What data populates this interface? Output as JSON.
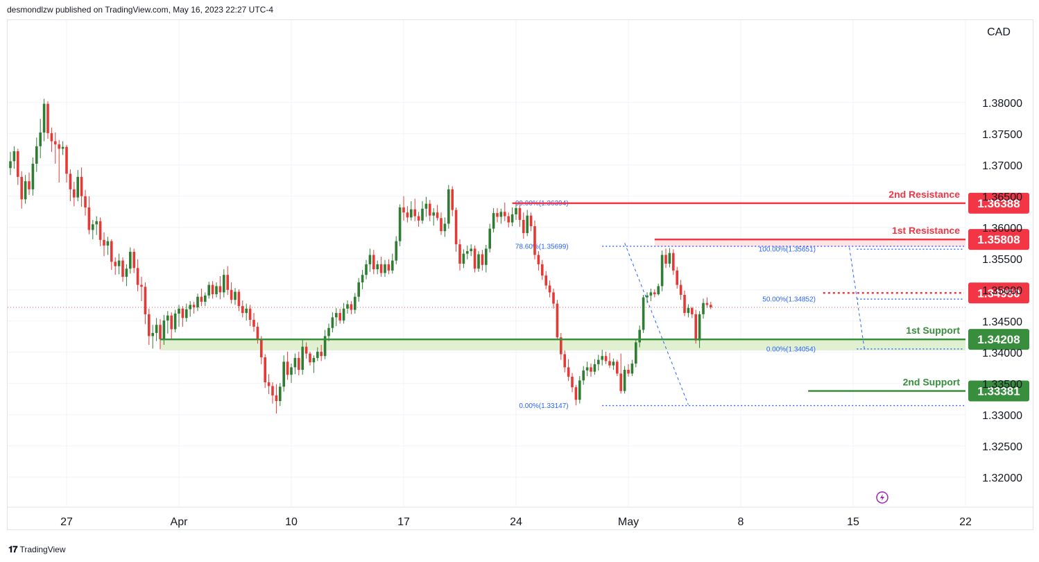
{
  "header": {
    "published": "desmondlzw published on TradingView.com, May 16, 2023 22:27 UTC-4"
  },
  "footer": {
    "brand": "TradingView",
    "logo_icon": "tradingview-logo-icon"
  },
  "axis": {
    "currency": "CAD"
  },
  "colors": {
    "up": "#2e7d32",
    "down": "#e53935",
    "resistance": "#f23645",
    "support": "#388e3c",
    "fib": "#2962ff",
    "grid": "#f0f3fa",
    "zone_green": "#dcedc8",
    "zone_red": "#fde0e0"
  },
  "chart_data": {
    "type": "candlestick",
    "symbol_currency": "CAD",
    "ylim": [
      1.3152,
      1.3932
    ],
    "y_ticks": [
      "1.38000",
      "1.37500",
      "1.37000",
      "1.36500",
      "1.36000",
      "1.35500",
      "1.35000",
      "1.34500",
      "1.34000",
      "1.33500",
      "1.33000",
      "1.32500",
      "1.32000"
    ],
    "x_ticks": [
      {
        "label": "27",
        "bar": 15
      },
      {
        "label": "Apr",
        "bar": 45
      },
      {
        "label": "10",
        "bar": 75
      },
      {
        "label": "17",
        "bar": 105
      },
      {
        "label": "24",
        "bar": 135
      },
      {
        "label": "May",
        "bar": 165
      },
      {
        "label": "8",
        "bar": 195
      },
      {
        "label": "15",
        "bar": 225
      },
      {
        "label": "22",
        "bar": 255
      }
    ],
    "candles": [
      [
        1.3695,
        1.3721,
        1.3684,
        1.3706
      ],
      [
        1.3706,
        1.373,
        1.3694,
        1.3722
      ],
      [
        1.3722,
        1.3726,
        1.3668,
        1.3681
      ],
      [
        1.3681,
        1.369,
        1.363,
        1.3645
      ],
      [
        1.3645,
        1.3684,
        1.3638,
        1.3674
      ],
      [
        1.3674,
        1.3688,
        1.3652,
        1.3661
      ],
      [
        1.3661,
        1.3712,
        1.3651,
        1.3702
      ],
      [
        1.3702,
        1.3744,
        1.3689,
        1.373
      ],
      [
        1.373,
        1.3774,
        1.3711,
        1.3752
      ],
      [
        1.3752,
        1.3806,
        1.3738,
        1.3798
      ],
      [
        1.3798,
        1.3802,
        1.3742,
        1.3751
      ],
      [
        1.3751,
        1.376,
        1.3721,
        1.3738
      ],
      [
        1.3738,
        1.3752,
        1.3702,
        1.3733
      ],
      [
        1.3733,
        1.374,
        1.3672,
        1.3726
      ],
      [
        1.3726,
        1.3738,
        1.3716,
        1.3729
      ],
      [
        1.3729,
        1.3732,
        1.3672,
        1.3686
      ],
      [
        1.3686,
        1.3693,
        1.3642,
        1.3661
      ],
      [
        1.3661,
        1.3673,
        1.3634,
        1.3648
      ],
      [
        1.3648,
        1.3692,
        1.3642,
        1.3681
      ],
      [
        1.3681,
        1.3696,
        1.3633,
        1.365
      ],
      [
        1.365,
        1.366,
        1.3619,
        1.3632
      ],
      [
        1.3632,
        1.365,
        1.3589,
        1.3596
      ],
      [
        1.3596,
        1.3612,
        1.3581,
        1.3605
      ],
      [
        1.3605,
        1.3618,
        1.3588,
        1.361
      ],
      [
        1.361,
        1.3616,
        1.357,
        1.358
      ],
      [
        1.358,
        1.3592,
        1.3554,
        1.3571
      ],
      [
        1.3571,
        1.3585,
        1.3556,
        1.3578
      ],
      [
        1.3578,
        1.3581,
        1.3532,
        1.3545
      ],
      [
        1.3545,
        1.3552,
        1.3524,
        1.3538
      ],
      [
        1.3538,
        1.3558,
        1.3525,
        1.3547
      ],
      [
        1.3547,
        1.3552,
        1.3513,
        1.3521
      ],
      [
        1.3521,
        1.3541,
        1.3506,
        1.3534
      ],
      [
        1.3534,
        1.3568,
        1.3526,
        1.3561
      ],
      [
        1.3561,
        1.3566,
        1.3527,
        1.3535
      ],
      [
        1.3535,
        1.3549,
        1.3498,
        1.3508
      ],
      [
        1.3508,
        1.3521,
        1.3482,
        1.3505
      ],
      [
        1.3505,
        1.3512,
        1.3445,
        1.3461
      ],
      [
        1.3461,
        1.347,
        1.3412,
        1.3426
      ],
      [
        1.3426,
        1.3444,
        1.3406,
        1.3431
      ],
      [
        1.3431,
        1.3455,
        1.3418,
        1.3444
      ],
      [
        1.3444,
        1.3453,
        1.3405,
        1.3421
      ],
      [
        1.3421,
        1.346,
        1.3412,
        1.3451
      ],
      [
        1.3451,
        1.3466,
        1.343,
        1.3459
      ],
      [
        1.3459,
        1.3464,
        1.3421,
        1.3437
      ],
      [
        1.3437,
        1.3468,
        1.3432,
        1.3462
      ],
      [
        1.3462,
        1.3476,
        1.3441,
        1.347
      ],
      [
        1.347,
        1.3474,
        1.3441,
        1.3455
      ],
      [
        1.3455,
        1.3478,
        1.3449,
        1.3469
      ],
      [
        1.3469,
        1.3482,
        1.3457,
        1.3476
      ],
      [
        1.3476,
        1.3481,
        1.3462,
        1.3472
      ],
      [
        1.3472,
        1.3494,
        1.3466,
        1.3489
      ],
      [
        1.3489,
        1.3502,
        1.3474,
        1.3481
      ],
      [
        1.3481,
        1.3496,
        1.3474,
        1.3491
      ],
      [
        1.3491,
        1.3513,
        1.3486,
        1.3508
      ],
      [
        1.3508,
        1.3514,
        1.3486,
        1.3493
      ],
      [
        1.3493,
        1.3512,
        1.3488,
        1.3506
      ],
      [
        1.3506,
        1.3522,
        1.3485,
        1.3496
      ],
      [
        1.3496,
        1.3533,
        1.3488,
        1.3524
      ],
      [
        1.3524,
        1.3538,
        1.3492,
        1.35
      ],
      [
        1.35,
        1.3512,
        1.3478,
        1.3484
      ],
      [
        1.3484,
        1.3503,
        1.3476,
        1.3497
      ],
      [
        1.3497,
        1.3501,
        1.3466,
        1.3474
      ],
      [
        1.3474,
        1.3483,
        1.3456,
        1.3463
      ],
      [
        1.3463,
        1.3478,
        1.3451,
        1.347
      ],
      [
        1.347,
        1.3476,
        1.3442,
        1.3452
      ],
      [
        1.3452,
        1.3463,
        1.3433,
        1.3441
      ],
      [
        1.3441,
        1.3448,
        1.3414,
        1.3422
      ],
      [
        1.3422,
        1.3426,
        1.3381,
        1.3392
      ],
      [
        1.3392,
        1.3397,
        1.3343,
        1.3352
      ],
      [
        1.3352,
        1.3365,
        1.3333,
        1.3346
      ],
      [
        1.3346,
        1.3352,
        1.3318,
        1.3331
      ],
      [
        1.3331,
        1.3349,
        1.3302,
        1.3322
      ],
      [
        1.3322,
        1.3351,
        1.3314,
        1.3345
      ],
      [
        1.3345,
        1.3395,
        1.3337,
        1.3385
      ],
      [
        1.3385,
        1.3401,
        1.3356,
        1.3364
      ],
      [
        1.3364,
        1.3382,
        1.3351,
        1.3376
      ],
      [
        1.3376,
        1.3398,
        1.3365,
        1.3391
      ],
      [
        1.3391,
        1.3401,
        1.3363,
        1.3372
      ],
      [
        1.3372,
        1.3421,
        1.3364,
        1.3409
      ],
      [
        1.3409,
        1.3416,
        1.339,
        1.3398
      ],
      [
        1.3398,
        1.3401,
        1.3379,
        1.3384
      ],
      [
        1.3384,
        1.3395,
        1.3367,
        1.3391
      ],
      [
        1.3391,
        1.3408,
        1.3386,
        1.3401
      ],
      [
        1.3401,
        1.3412,
        1.3386,
        1.3394
      ],
      [
        1.3394,
        1.3436,
        1.3389,
        1.3426
      ],
      [
        1.3426,
        1.3446,
        1.3418,
        1.3439
      ],
      [
        1.3439,
        1.3464,
        1.3432,
        1.3456
      ],
      [
        1.3456,
        1.3471,
        1.3442,
        1.3463
      ],
      [
        1.3463,
        1.347,
        1.3446,
        1.3451
      ],
      [
        1.3451,
        1.3479,
        1.3446,
        1.347
      ],
      [
        1.347,
        1.3483,
        1.3462,
        1.3477
      ],
      [
        1.3477,
        1.3482,
        1.3461,
        1.3468
      ],
      [
        1.3468,
        1.3495,
        1.3462,
        1.3489
      ],
      [
        1.3489,
        1.3519,
        1.3481,
        1.3512
      ],
      [
        1.3512,
        1.3532,
        1.3501,
        1.3524
      ],
      [
        1.3524,
        1.3548,
        1.3517,
        1.3541
      ],
      [
        1.3541,
        1.3566,
        1.3529,
        1.3556
      ],
      [
        1.3556,
        1.3564,
        1.3525,
        1.3533
      ],
      [
        1.3533,
        1.3547,
        1.3525,
        1.3541
      ],
      [
        1.3541,
        1.3553,
        1.3521,
        1.3527
      ],
      [
        1.3527,
        1.3548,
        1.3521,
        1.3541
      ],
      [
        1.3541,
        1.3549,
        1.3525,
        1.3531
      ],
      [
        1.3531,
        1.3558,
        1.3526,
        1.3547
      ],
      [
        1.3547,
        1.3586,
        1.3541,
        1.3578
      ],
      [
        1.3578,
        1.3637,
        1.357,
        1.3632
      ],
      [
        1.3632,
        1.365,
        1.3611,
        1.3624
      ],
      [
        1.3624,
        1.3634,
        1.3608,
        1.3616
      ],
      [
        1.3616,
        1.3642,
        1.3611,
        1.3629
      ],
      [
        1.3629,
        1.3646,
        1.361,
        1.3618
      ],
      [
        1.3618,
        1.3625,
        1.3601,
        1.3611
      ],
      [
        1.3611,
        1.3642,
        1.3606,
        1.363
      ],
      [
        1.363,
        1.3649,
        1.3617,
        1.3638
      ],
      [
        1.3638,
        1.3644,
        1.361,
        1.3619
      ],
      [
        1.3619,
        1.3631,
        1.3603,
        1.3624
      ],
      [
        1.3624,
        1.3636,
        1.3611,
        1.3615
      ],
      [
        1.3615,
        1.3624,
        1.3588,
        1.3594
      ],
      [
        1.3594,
        1.3616,
        1.3585,
        1.3606
      ],
      [
        1.3606,
        1.3668,
        1.3598,
        1.3661
      ],
      [
        1.3661,
        1.3666,
        1.3618,
        1.3628
      ],
      [
        1.3628,
        1.3632,
        1.3561,
        1.3573
      ],
      [
        1.3573,
        1.3581,
        1.3531,
        1.3542
      ],
      [
        1.3542,
        1.3565,
        1.3535,
        1.3558
      ],
      [
        1.3558,
        1.3571,
        1.3549,
        1.3562
      ],
      [
        1.3562,
        1.3573,
        1.3554,
        1.3566
      ],
      [
        1.3566,
        1.3571,
        1.3528,
        1.3534
      ],
      [
        1.3534,
        1.3562,
        1.3529,
        1.3557
      ],
      [
        1.3557,
        1.3564,
        1.3531,
        1.354
      ],
      [
        1.354,
        1.3572,
        1.3528,
        1.3566
      ],
      [
        1.3566,
        1.3606,
        1.356,
        1.3598
      ],
      [
        1.3598,
        1.3631,
        1.3592,
        1.3623
      ],
      [
        1.3623,
        1.3631,
        1.3608,
        1.3617
      ],
      [
        1.3617,
        1.363,
        1.3606,
        1.3625
      ],
      [
        1.3625,
        1.364,
        1.361,
        1.3618
      ],
      [
        1.3618,
        1.3624,
        1.36,
        1.3608
      ],
      [
        1.3608,
        1.3632,
        1.3602,
        1.3621
      ],
      [
        1.3621,
        1.3638,
        1.3612,
        1.3631
      ],
      [
        1.3631,
        1.3636,
        1.3601,
        1.3612
      ],
      [
        1.3612,
        1.3624,
        1.3582,
        1.3591
      ],
      [
        1.3591,
        1.3628,
        1.3586,
        1.3619
      ],
      [
        1.3619,
        1.3624,
        1.3594,
        1.3602
      ],
      [
        1.3602,
        1.3611,
        1.3549,
        1.3556
      ],
      [
        1.3556,
        1.3562,
        1.3531,
        1.3541
      ],
      [
        1.3541,
        1.3548,
        1.3516,
        1.3523
      ],
      [
        1.3523,
        1.353,
        1.3501,
        1.3507
      ],
      [
        1.3507,
        1.3515,
        1.3488,
        1.3496
      ],
      [
        1.3496,
        1.3502,
        1.347,
        1.3478
      ],
      [
        1.3478,
        1.3484,
        1.342,
        1.3424
      ],
      [
        1.3424,
        1.3431,
        1.3388,
        1.3397
      ],
      [
        1.3397,
        1.3403,
        1.3368,
        1.3376
      ],
      [
        1.3376,
        1.3389,
        1.3354,
        1.3361
      ],
      [
        1.3361,
        1.3367,
        1.3336,
        1.3344
      ],
      [
        1.3344,
        1.3348,
        1.3315,
        1.3324
      ],
      [
        1.3324,
        1.3362,
        1.3318,
        1.3355
      ],
      [
        1.3355,
        1.3378,
        1.3348,
        1.3371
      ],
      [
        1.3371,
        1.3385,
        1.3362,
        1.3376
      ],
      [
        1.3376,
        1.3382,
        1.3361,
        1.3369
      ],
      [
        1.3369,
        1.3389,
        1.3364,
        1.3381
      ],
      [
        1.3381,
        1.3396,
        1.3371,
        1.3388
      ],
      [
        1.3388,
        1.3404,
        1.3379,
        1.3394
      ],
      [
        1.3394,
        1.3401,
        1.3381,
        1.3386
      ],
      [
        1.3386,
        1.3399,
        1.3375,
        1.3379
      ],
      [
        1.3379,
        1.339,
        1.3372,
        1.3385
      ],
      [
        1.3385,
        1.3388,
        1.3362,
        1.3366
      ],
      [
        1.3366,
        1.3398,
        1.3334,
        1.3338
      ],
      [
        1.3338,
        1.3378,
        1.3334,
        1.3372
      ],
      [
        1.3372,
        1.3381,
        1.3361,
        1.3366
      ],
      [
        1.3366,
        1.3388,
        1.3362,
        1.3382
      ],
      [
        1.3382,
        1.3421,
        1.3376,
        1.3416
      ],
      [
        1.3416,
        1.3443,
        1.3408,
        1.3436
      ],
      [
        1.3436,
        1.3492,
        1.3431,
        1.3488
      ],
      [
        1.3488,
        1.3496,
        1.3479,
        1.3491
      ],
      [
        1.3491,
        1.3502,
        1.3482,
        1.3496
      ],
      [
        1.3496,
        1.3501,
        1.3488,
        1.3493
      ],
      [
        1.3493,
        1.351,
        1.3491,
        1.3506
      ],
      [
        1.3506,
        1.3563,
        1.3498,
        1.3556
      ],
      [
        1.3556,
        1.3566,
        1.3535,
        1.3542
      ],
      [
        1.3542,
        1.3567,
        1.3536,
        1.3559
      ],
      [
        1.3559,
        1.3565,
        1.3524,
        1.3531
      ],
      [
        1.3531,
        1.3537,
        1.3502,
        1.3508
      ],
      [
        1.3508,
        1.3516,
        1.3484,
        1.3492
      ],
      [
        1.3492,
        1.3499,
        1.3458,
        1.3463
      ],
      [
        1.3463,
        1.3477,
        1.3456,
        1.3471
      ],
      [
        1.3471,
        1.3473,
        1.3455,
        1.3461
      ],
      [
        1.3461,
        1.3468,
        1.3414,
        1.3419
      ],
      [
        1.3419,
        1.3466,
        1.3407,
        1.3461
      ],
      [
        1.3461,
        1.3486,
        1.3454,
        1.3479
      ],
      [
        1.3479,
        1.3488,
        1.3471,
        1.3476
      ],
      [
        1.3476,
        1.3481,
        1.3469,
        1.3472
      ]
    ],
    "current_price": 1.3472,
    "levels": [
      {
        "name": "2nd Resistance",
        "badge": "1.36388",
        "price": 1.36388,
        "kind": "resistance",
        "from_bar": 134
      },
      {
        "name": "1st Resistance",
        "badge": "1.35808",
        "price": 1.35808,
        "kind": "resistance",
        "from_bar": 172
      },
      {
        "name": "",
        "badge": "1.34950",
        "price": 1.3495,
        "kind": "resistance-dotted",
        "from_bar": 217
      },
      {
        "name": "1st Support",
        "badge": "1.34208",
        "price": 1.34208,
        "kind": "support",
        "from_bar": 40
      },
      {
        "name": "2nd Support",
        "badge": "1.33381",
        "price": 1.33381,
        "kind": "support",
        "from_bar": 213
      }
    ],
    "zones": [
      {
        "kind": "support",
        "from_price": 1.3403,
        "to_price": 1.342,
        "from_bar": 40
      },
      {
        "kind": "resistance",
        "from_price": 1.3569,
        "to_price": 1.3581,
        "from_bar": 172
      }
    ],
    "fib_labels": [
      {
        "text": "00.00%(1.36394)",
        "price": 1.36394,
        "bar": 149
      },
      {
        "text": "78.60%(1.35699)",
        "price": 1.35699,
        "bar": 149
      },
      {
        "text": "0.00%(1.33147)",
        "price": 1.33147,
        "bar": 149
      },
      {
        "text": "100.00%(1.35651)",
        "price": 1.35651,
        "bar": 215
      },
      {
        "text": "50.00%(1.34852)",
        "price": 1.34852,
        "bar": 215
      },
      {
        "text": "0.00%(1.34054)",
        "price": 1.34054,
        "bar": 215
      }
    ],
    "fib_lines": [
      {
        "price": 1.35699,
        "from_bar": 158
      },
      {
        "price": 1.33147,
        "from_bar": 158
      },
      {
        "price": 1.35651,
        "from_bar": 226
      },
      {
        "price": 1.34852,
        "from_bar": 226
      },
      {
        "price": 1.34054,
        "from_bar": 226
      }
    ],
    "fib_diagonals": [
      {
        "from_bar": 164,
        "from_price": 1.3575,
        "to_bar": 181,
        "to_price": 1.3316
      },
      {
        "from_bar": 224,
        "from_price": 1.3568,
        "to_bar": 228,
        "to_price": 1.3406
      }
    ]
  }
}
